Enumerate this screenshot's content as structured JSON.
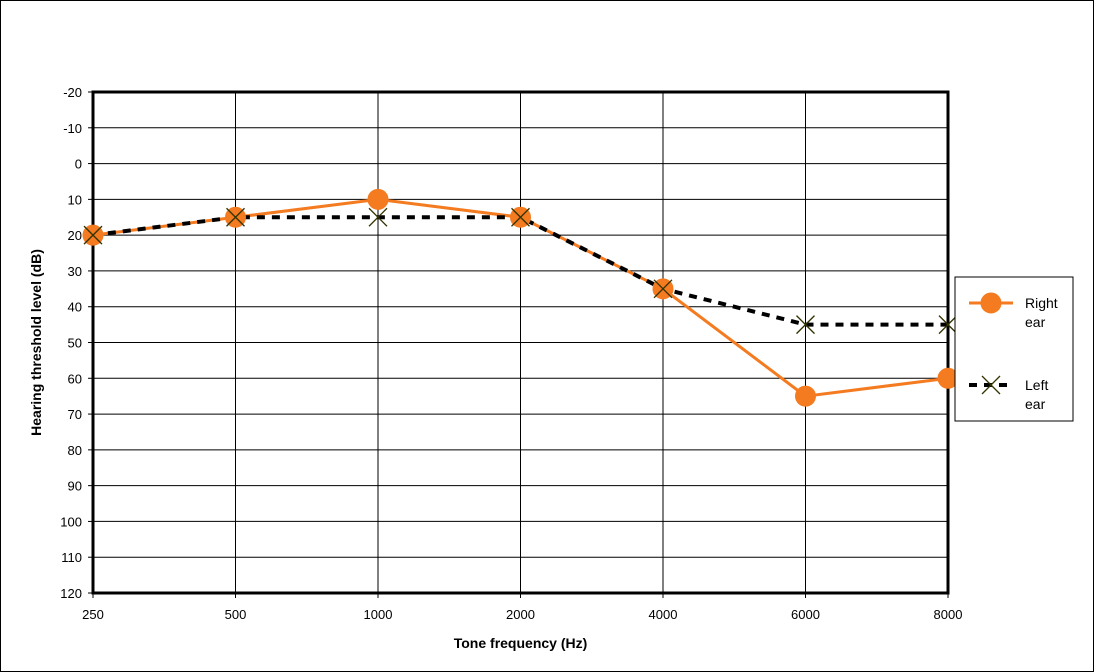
{
  "chart_data": {
    "type": "line",
    "xlabel": "Tone frequency (Hz)",
    "ylabel": "Hearing threshold level (dB)",
    "categories": [
      "250",
      "500",
      "1000",
      "2000",
      "4000",
      "6000",
      "8000"
    ],
    "y_ticks": [
      "-20",
      "-10",
      "0",
      "10",
      "20",
      "30",
      "40",
      "50",
      "60",
      "70",
      "80",
      "90",
      "100",
      "110",
      "120"
    ],
    "ylim": [
      -20,
      120
    ],
    "y_inverted": true,
    "grid": true,
    "legend_position": "right",
    "series": [
      {
        "name": "Right ear",
        "name_lines": [
          "Right",
          "ear"
        ],
        "values": [
          20,
          15,
          10,
          15,
          35,
          65,
          60
        ],
        "color": "#f47b20",
        "marker": "circle",
        "line": "solid"
      },
      {
        "name": "Left ear",
        "name_lines": [
          "Left",
          "ear"
        ],
        "values": [
          20,
          15,
          15,
          15,
          35,
          45,
          45
        ],
        "color": "#000000",
        "marker_color": "#333300",
        "marker": "x",
        "line": "dotted"
      }
    ]
  }
}
